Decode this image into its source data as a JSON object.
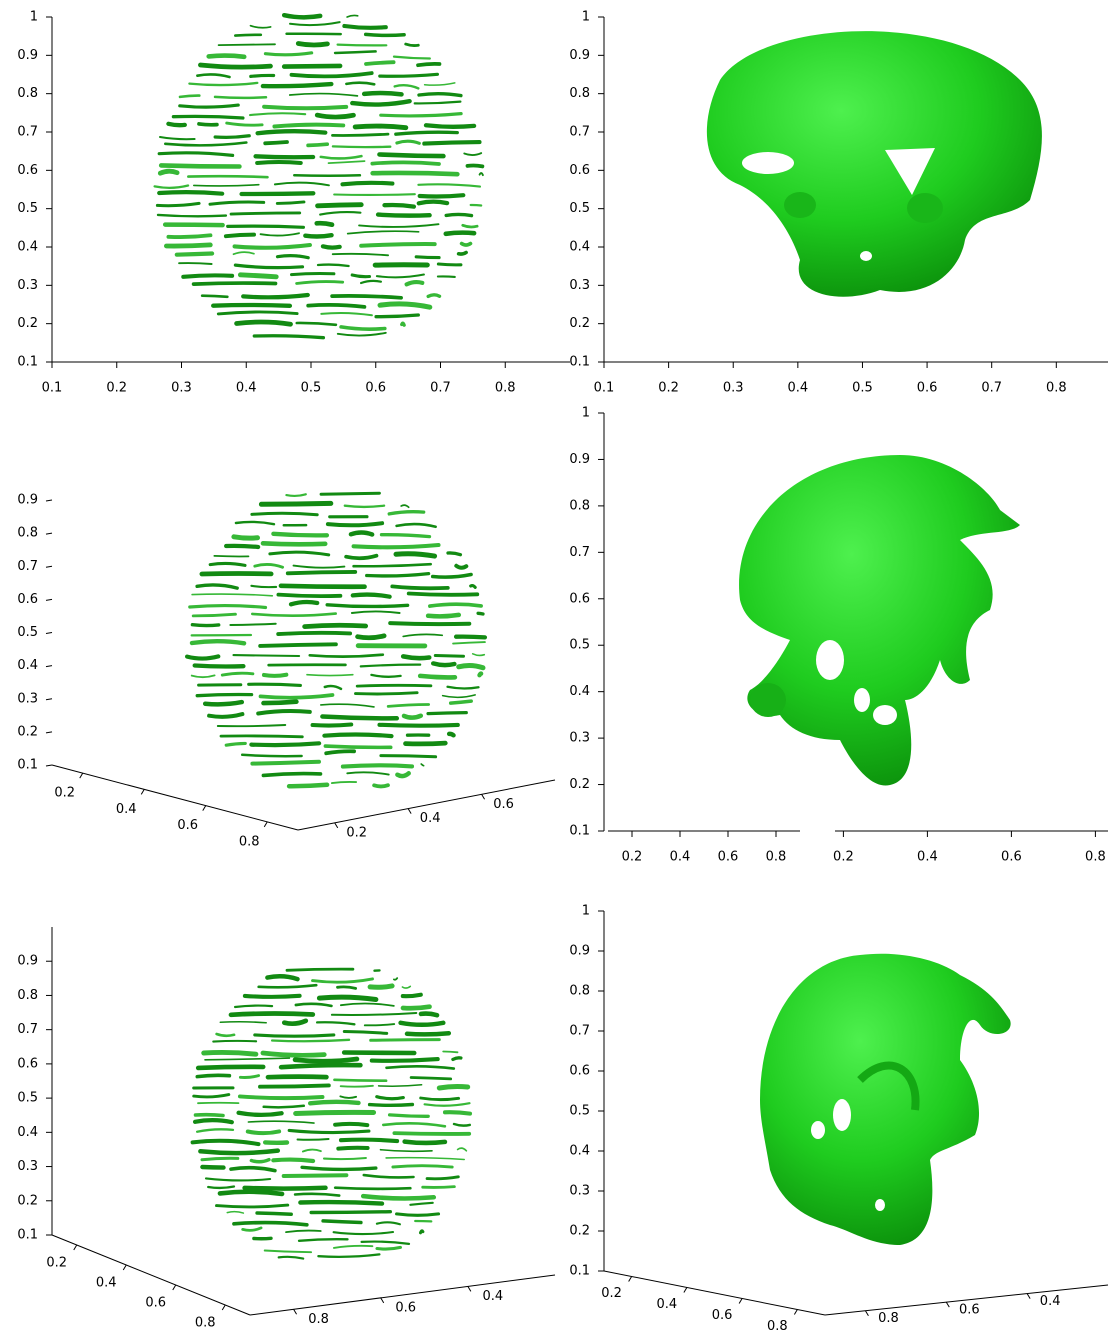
{
  "chart_data": [
    {
      "type": "isosurface",
      "xlim": [
        0.1,
        0.9
      ],
      "ylim": [
        0.1,
        1
      ],
      "xticks": [
        0.1,
        0.2,
        0.3,
        0.4,
        0.5,
        0.6,
        0.7,
        0.8
      ],
      "yticks": [
        0.1,
        0.2,
        0.3,
        0.4,
        0.5,
        0.6,
        0.7,
        0.8,
        0.9,
        1
      ]
    },
    {
      "type": "isosurface",
      "xlim": [
        0.1,
        0.88
      ],
      "ylim": [
        0.1,
        1
      ],
      "xticks": [
        0.1,
        0.2,
        0.3,
        0.4,
        0.5,
        0.6,
        0.7,
        0.8
      ],
      "yticks": [
        0.1,
        0.2,
        0.3,
        0.4,
        0.5,
        0.6,
        0.7,
        0.8,
        0.9,
        1
      ]
    },
    {
      "type": "isosurface3d",
      "xlim": [
        0.1,
        0.9
      ],
      "ylim": [
        0.1,
        0.8
      ],
      "zlim": [
        0.1,
        0.9
      ],
      "xticks": [
        0.2,
        0.4,
        0.6,
        0.8
      ],
      "yticks": [
        0.2,
        0.4,
        0.6
      ],
      "zticks": [
        0.1,
        0.2,
        0.3,
        0.4,
        0.5,
        0.6,
        0.7,
        0.8,
        0.9
      ]
    },
    {
      "type": "isosurface3d",
      "xlim": [
        0.1,
        0.9
      ],
      "ylim": [
        0.18,
        0.83
      ],
      "zlim": [
        0.1,
        1
      ],
      "xticks": [
        0.2,
        0.4,
        0.6,
        0.8
      ],
      "yticks": [
        0.2,
        0.4,
        0.6,
        0.8
      ],
      "zticks": [
        0.1,
        0.2,
        0.3,
        0.4,
        0.5,
        0.6,
        0.7,
        0.8,
        0.9,
        1
      ]
    },
    {
      "type": "isosurface3d",
      "xlim": [
        0.1,
        0.9
      ],
      "ylim": [
        0.9,
        0.2
      ],
      "zlim": [
        0.1,
        1
      ],
      "xticks": [
        0.2,
        0.4,
        0.6,
        0.8
      ],
      "yticks": [
        0.8,
        0.6,
        0.4
      ],
      "zticks": [
        0.1,
        0.2,
        0.3,
        0.4,
        0.5,
        0.6,
        0.7,
        0.8,
        0.9
      ]
    },
    {
      "type": "isosurface3d",
      "xlim": [
        0.1,
        0.9
      ],
      "ylim": [
        0.9,
        0.2
      ],
      "zlim": [
        0.1,
        1
      ],
      "xticks": [
        0.2,
        0.4,
        0.6,
        0.8
      ],
      "yticks": [
        0.8,
        0.6,
        0.4
      ],
      "zticks": [
        0.1,
        0.2,
        0.3,
        0.4,
        0.5,
        0.6,
        0.7,
        0.8,
        0.9,
        1
      ]
    }
  ]
}
